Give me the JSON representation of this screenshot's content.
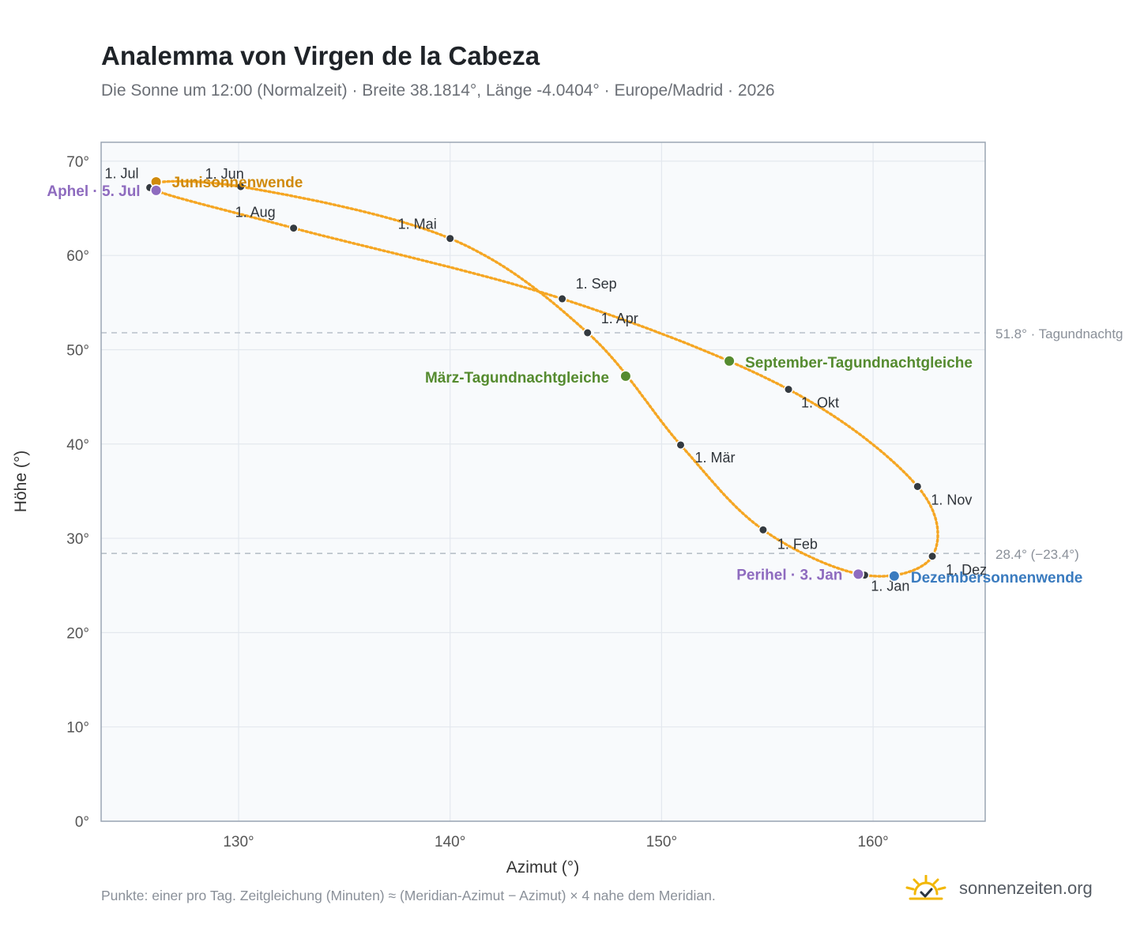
{
  "title": "Analemma von Virgen de la Cabeza",
  "subtitle": "Die Sonne um 12:00 (Normalzeit) · Breite 38.1814°, Länge -4.0404° · Europe/Madrid · 2026",
  "footnote": "Punkte: einer pro Tag. Zeitgleichung (Minuten) ≈ (Meridian-Azimut − Azimut) × 4 nahe dem Meridian.",
  "brand": "sonnenzeiten.org",
  "colors": {
    "curve": "#f5a623",
    "month_marker": "#343a40",
    "solstice_june": "#d08a0c",
    "equinox": "#558b2f",
    "solstice_december": "#3a7bbf",
    "apsis": "#8e6bbf",
    "reference_line": "#b8c0c9",
    "plot_background": "#f8fafc",
    "grid": "#e3e8ee",
    "frame": "#9aa5b3"
  },
  "chart_data": {
    "type": "scatter",
    "xlabel": "Azimut (°)",
    "ylabel": "Höhe (°)",
    "xlim": [
      123.5,
      165.3
    ],
    "ylim": [
      0,
      72
    ],
    "x_ticks": [
      130,
      140,
      150,
      160
    ],
    "y_ticks": [
      0,
      10,
      20,
      30,
      40,
      50,
      60,
      70
    ],
    "x_tick_labels": [
      "130°",
      "140°",
      "150°",
      "160°"
    ],
    "y_tick_labels": [
      "0°",
      "10°",
      "20°",
      "30°",
      "40°",
      "50°",
      "60°",
      "70°"
    ],
    "grid": true,
    "month_markers": [
      {
        "label": "1. Jan",
        "az": 159.6,
        "alt": 26.1
      },
      {
        "label": "1. Feb",
        "az": 154.8,
        "alt": 30.9
      },
      {
        "label": "1. Mär",
        "az": 150.9,
        "alt": 39.9
      },
      {
        "label": "1. Apr",
        "az": 146.5,
        "alt": 51.8
      },
      {
        "label": "1. Mai",
        "az": 140.0,
        "alt": 61.8
      },
      {
        "label": "1. Jun",
        "az": 130.1,
        "alt": 67.3
      },
      {
        "label": "1. Jul",
        "az": 125.8,
        "alt": 67.2
      },
      {
        "label": "1. Aug",
        "az": 132.6,
        "alt": 62.9
      },
      {
        "label": "1. Sep",
        "az": 145.3,
        "alt": 55.4
      },
      {
        "label": "1. Okt",
        "az": 156.0,
        "alt": 45.8
      },
      {
        "label": "1. Nov",
        "az": 162.1,
        "alt": 35.5
      },
      {
        "label": "1. Dez",
        "az": 162.8,
        "alt": 28.1
      }
    ],
    "events": [
      {
        "label": "Junisonnenwende",
        "az": 126.1,
        "alt": 67.8,
        "kind": "solstice_june"
      },
      {
        "label": "März-Tagundnachtgleiche",
        "az": 148.3,
        "alt": 47.2,
        "kind": "equinox"
      },
      {
        "label": "September-Tagundnachtgleiche",
        "az": 153.2,
        "alt": 48.8,
        "kind": "equinox"
      },
      {
        "label": "Dezembersonnenwende",
        "az": 161.0,
        "alt": 26.0,
        "kind": "solstice_december"
      },
      {
        "label": "Perihel · 3. Jan",
        "az": 159.3,
        "alt": 26.2,
        "kind": "apsis"
      },
      {
        "label": "Aphel · 5. Jul",
        "az": 126.1,
        "alt": 66.9,
        "kind": "apsis"
      }
    ],
    "reference_lines": [
      {
        "alt": 51.8,
        "label": "51.8° · Tagundnachtg"
      },
      {
        "alt": 28.4,
        "label": "28.4° (−23.4°)"
      }
    ]
  }
}
